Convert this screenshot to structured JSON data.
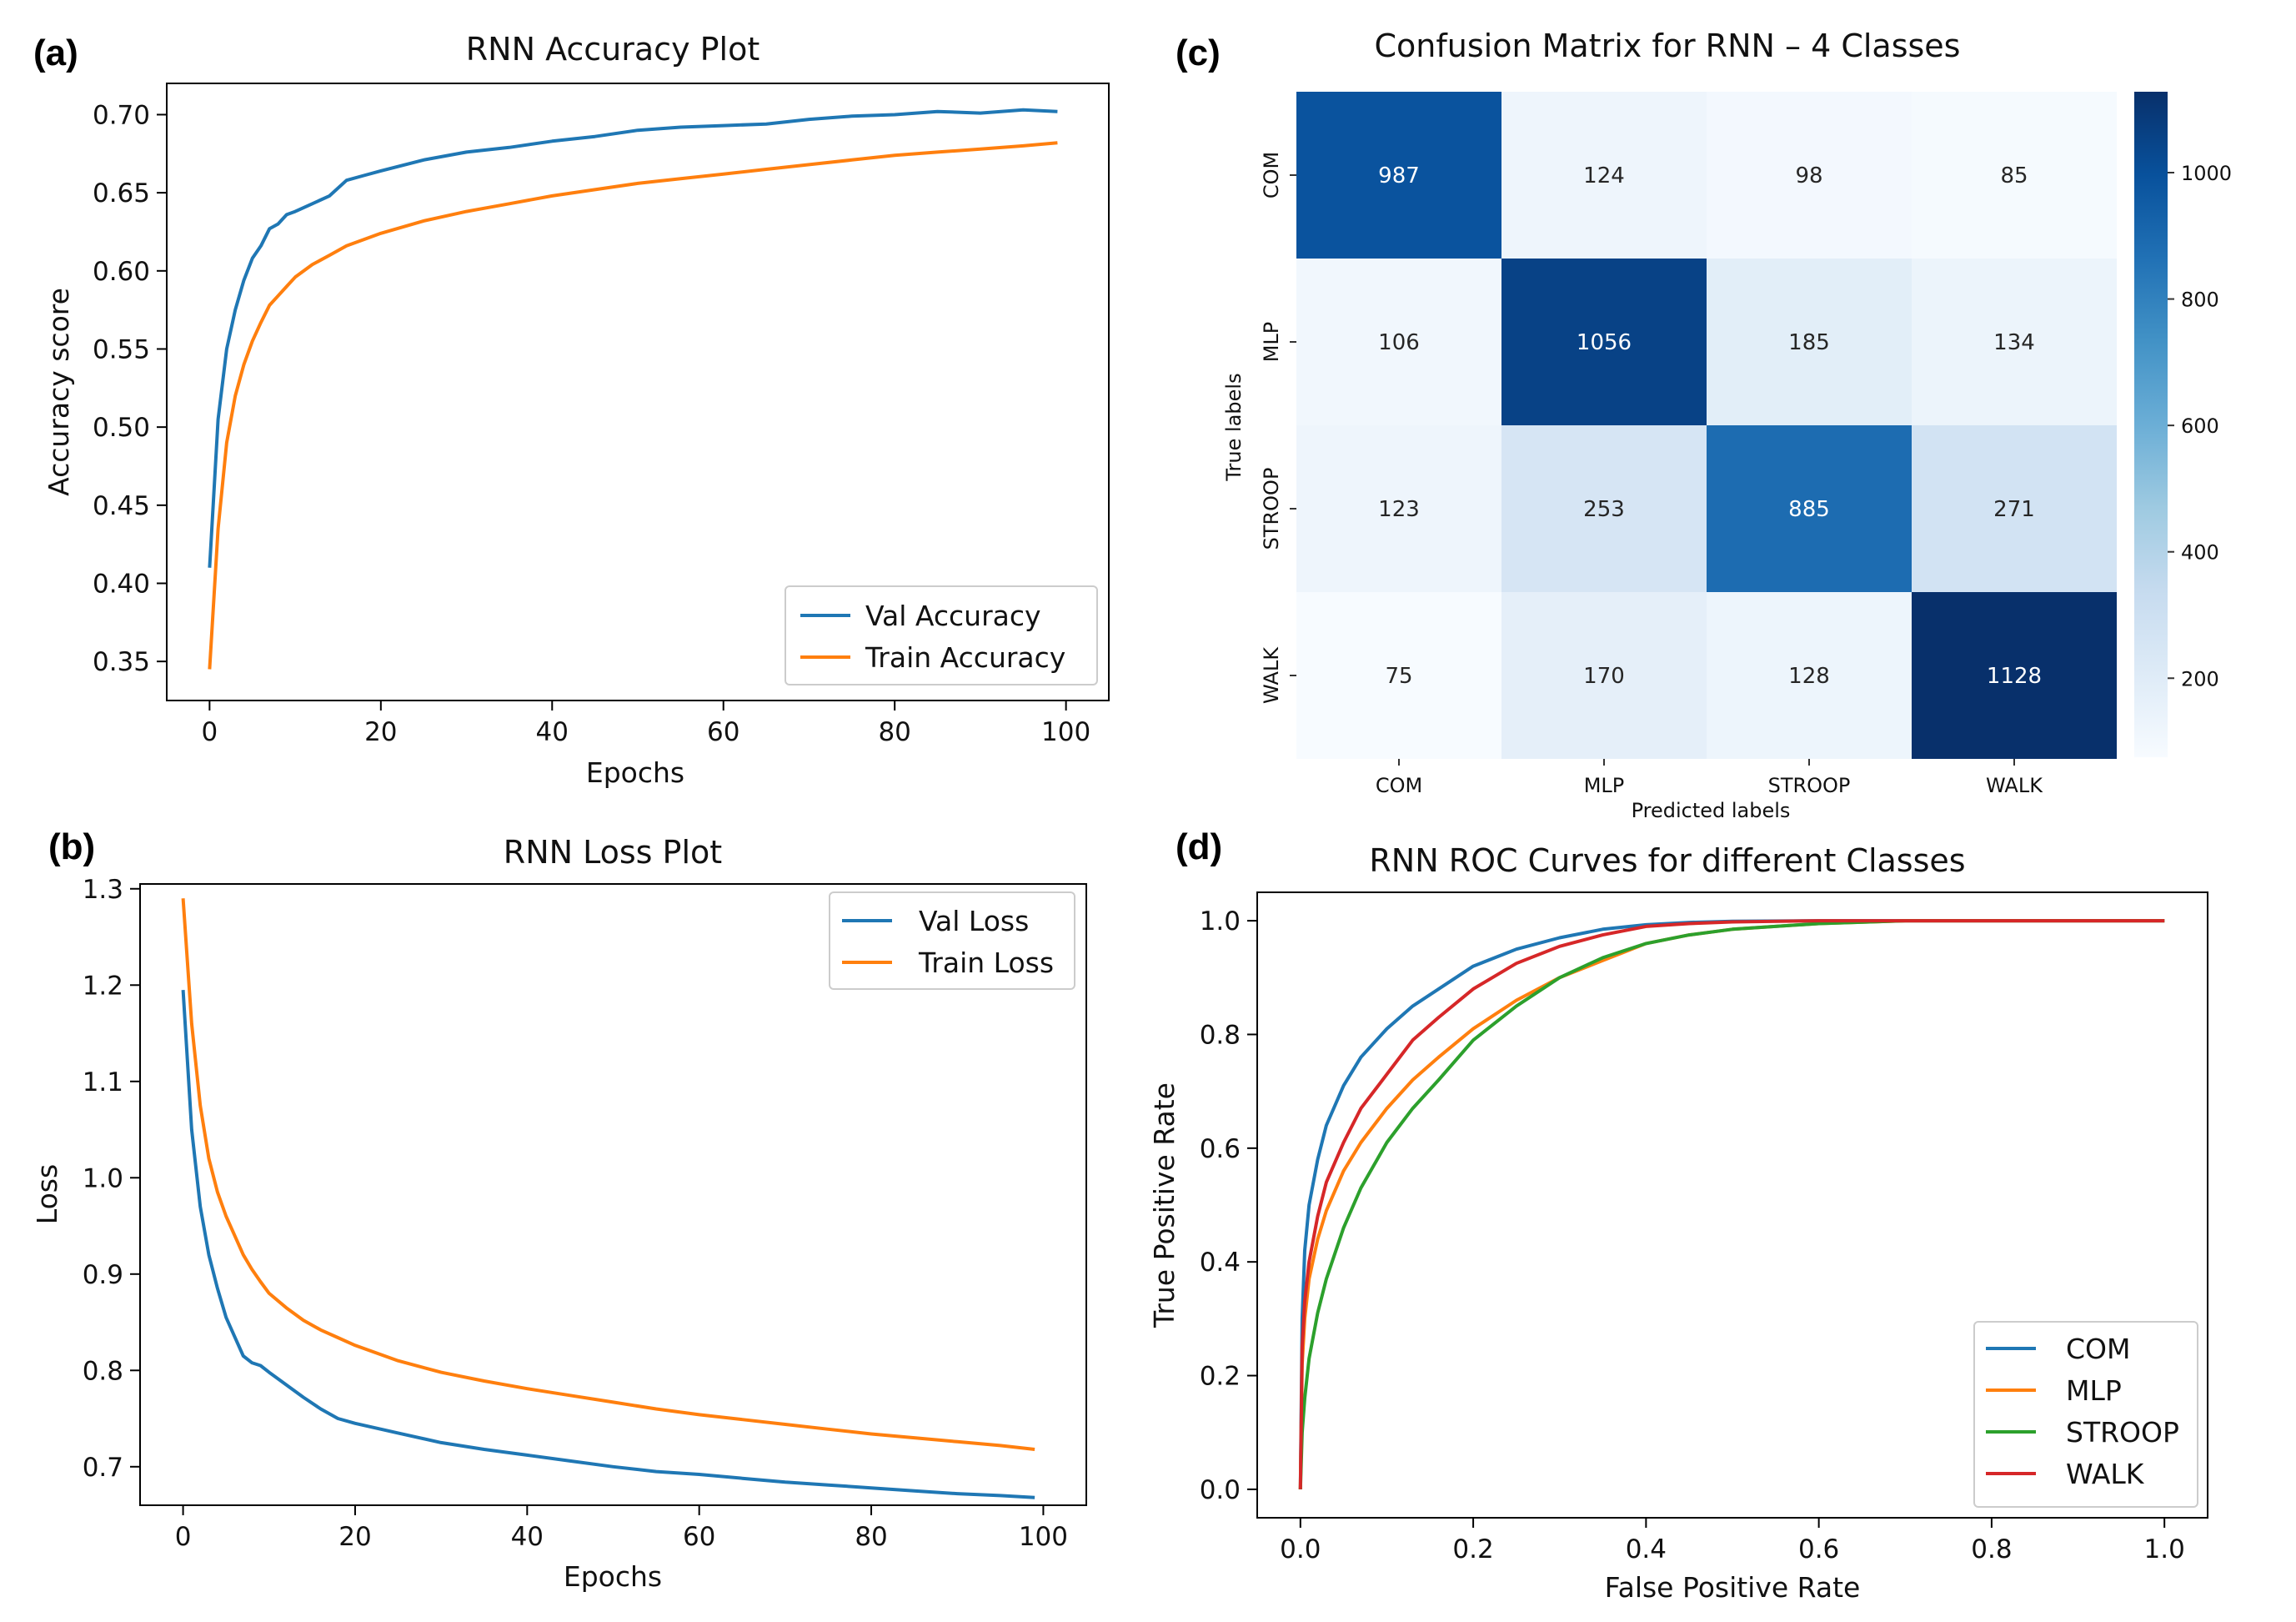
{
  "panels": {
    "a": "(a)",
    "b": "(b)",
    "c": "(c)",
    "d": "(d)"
  },
  "colors": {
    "blue": "#1f77b4",
    "orange": "#ff7f0e",
    "green": "#2ca02c",
    "red": "#d62728",
    "cm_low": "#f7fbff",
    "cm_high": "#08306b"
  },
  "chart_data": [
    {
      "id": "a",
      "type": "line",
      "title": "RNN Accuracy Plot",
      "xlabel": "Epochs",
      "ylabel": "Accuracy score",
      "xlim": [
        -5,
        105
      ],
      "ylim": [
        0.325,
        0.72
      ],
      "xticks": [
        0,
        20,
        40,
        60,
        80,
        100
      ],
      "xtick_labels": [
        "0",
        "20",
        "40",
        "60",
        "80",
        "100"
      ],
      "yticks": [
        0.35,
        0.4,
        0.45,
        0.5,
        0.55,
        0.6,
        0.65,
        0.7
      ],
      "ytick_labels": [
        "0.35",
        "0.40",
        "0.45",
        "0.50",
        "0.55",
        "0.60",
        "0.65",
        "0.70"
      ],
      "legend_position": "lower-right",
      "series": [
        {
          "name": "Val Accuracy",
          "color": "#1f77b4",
          "x": [
            0,
            1,
            2,
            3,
            4,
            5,
            6,
            7,
            8,
            9,
            10,
            12,
            14,
            16,
            18,
            20,
            25,
            30,
            35,
            40,
            45,
            50,
            55,
            60,
            65,
            70,
            75,
            80,
            85,
            90,
            95,
            99
          ],
          "y": [
            0.41,
            0.505,
            0.55,
            0.575,
            0.594,
            0.608,
            0.616,
            0.627,
            0.63,
            0.636,
            0.638,
            0.643,
            0.648,
            0.658,
            0.661,
            0.664,
            0.671,
            0.676,
            0.679,
            0.683,
            0.686,
            0.69,
            0.692,
            0.693,
            0.694,
            0.697,
            0.699,
            0.7,
            0.702,
            0.701,
            0.703,
            0.702
          ]
        },
        {
          "name": "Train Accuracy",
          "color": "#ff7f0e",
          "x": [
            0,
            1,
            2,
            3,
            4,
            5,
            6,
            7,
            8,
            9,
            10,
            12,
            14,
            16,
            18,
            20,
            25,
            30,
            35,
            40,
            45,
            50,
            55,
            60,
            65,
            70,
            75,
            80,
            85,
            90,
            95,
            99
          ],
          "y": [
            0.345,
            0.435,
            0.49,
            0.52,
            0.54,
            0.555,
            0.567,
            0.578,
            0.584,
            0.59,
            0.596,
            0.604,
            0.61,
            0.616,
            0.62,
            0.624,
            0.632,
            0.638,
            0.643,
            0.648,
            0.652,
            0.656,
            0.659,
            0.662,
            0.665,
            0.668,
            0.671,
            0.674,
            0.676,
            0.678,
            0.68,
            0.682
          ]
        }
      ]
    },
    {
      "id": "b",
      "type": "line",
      "title": "RNN Loss Plot",
      "xlabel": "Epochs",
      "ylabel": "Loss",
      "xlim": [
        -5,
        105
      ],
      "ylim": [
        0.66,
        1.305
      ],
      "xticks": [
        0,
        20,
        40,
        60,
        80,
        100
      ],
      "xtick_labels": [
        "0",
        "20",
        "40",
        "60",
        "80",
        "100"
      ],
      "yticks": [
        0.7,
        0.8,
        0.9,
        1.0,
        1.1,
        1.2,
        1.3
      ],
      "ytick_labels": [
        "0.7",
        "0.8",
        "0.9",
        "1.0",
        "1.1",
        "1.2",
        "1.3"
      ],
      "legend_position": "upper-right",
      "series": [
        {
          "name": "Val Loss",
          "color": "#1f77b4",
          "x": [
            0,
            1,
            2,
            3,
            4,
            5,
            6,
            7,
            8,
            9,
            10,
            12,
            14,
            16,
            18,
            20,
            25,
            30,
            35,
            40,
            45,
            50,
            55,
            60,
            65,
            70,
            75,
            80,
            85,
            90,
            95,
            99
          ],
          "y": [
            1.195,
            1.05,
            0.97,
            0.92,
            0.885,
            0.855,
            0.835,
            0.815,
            0.808,
            0.805,
            0.798,
            0.785,
            0.772,
            0.76,
            0.75,
            0.745,
            0.735,
            0.725,
            0.718,
            0.712,
            0.706,
            0.7,
            0.695,
            0.692,
            0.688,
            0.684,
            0.681,
            0.678,
            0.675,
            0.672,
            0.67,
            0.668
          ]
        },
        {
          "name": "Train Loss",
          "color": "#ff7f0e",
          "x": [
            0,
            1,
            2,
            3,
            4,
            5,
            6,
            7,
            8,
            9,
            10,
            12,
            14,
            16,
            18,
            20,
            25,
            30,
            35,
            40,
            45,
            50,
            55,
            60,
            65,
            70,
            75,
            80,
            85,
            90,
            95,
            99
          ],
          "y": [
            1.29,
            1.16,
            1.075,
            1.02,
            0.985,
            0.96,
            0.94,
            0.92,
            0.905,
            0.892,
            0.88,
            0.865,
            0.852,
            0.842,
            0.834,
            0.826,
            0.81,
            0.798,
            0.789,
            0.781,
            0.774,
            0.767,
            0.76,
            0.754,
            0.749,
            0.744,
            0.739,
            0.734,
            0.73,
            0.726,
            0.722,
            0.718
          ]
        }
      ]
    },
    {
      "id": "c",
      "type": "heatmap",
      "title": "Confusion Matrix for RNN – 4 Classes",
      "xlabel": "Predicted labels",
      "ylabel": "True labels",
      "xtick_labels": [
        "COM",
        "MLP",
        "STROOP",
        "WALK"
      ],
      "ytick_labels": [
        "COM",
        "MLP",
        "STROOP",
        "WALK"
      ],
      "matrix": [
        [
          987,
          124,
          98,
          85
        ],
        [
          106,
          1056,
          185,
          134
        ],
        [
          123,
          253,
          885,
          271
        ],
        [
          75,
          170,
          128,
          1128
        ]
      ],
      "value_labels": [
        [
          "987",
          "124",
          "98",
          "85"
        ],
        [
          "106",
          "1056",
          "185",
          "134"
        ],
        [
          "123",
          "253",
          "885",
          "271"
        ],
        [
          "75",
          "170",
          "128",
          "1128"
        ]
      ],
      "colorbar": {
        "range": [
          75,
          1128
        ],
        "ticks": [
          200,
          400,
          600,
          800,
          1000
        ],
        "tick_labels": [
          "200",
          "400",
          "600",
          "800",
          "1000"
        ]
      }
    },
    {
      "id": "d",
      "type": "line",
      "title": "RNN ROC Curves for different Classes",
      "xlabel": "False Positive Rate",
      "ylabel": "True Positive Rate",
      "xlim": [
        -0.05,
        1.05
      ],
      "ylim": [
        -0.05,
        1.05
      ],
      "xticks": [
        0,
        0.2,
        0.4,
        0.6,
        0.8,
        1.0
      ],
      "xtick_labels": [
        "0.0",
        "0.2",
        "0.4",
        "0.6",
        "0.8",
        "1.0"
      ],
      "yticks": [
        0,
        0.2,
        0.4,
        0.6,
        0.8,
        1.0
      ],
      "ytick_labels": [
        "0.0",
        "0.2",
        "0.4",
        "0.6",
        "0.8",
        "1.0"
      ],
      "legend_position": "lower-right",
      "series": [
        {
          "name": "COM",
          "color": "#1f77b4",
          "x": [
            0,
            0.002,
            0.005,
            0.01,
            0.02,
            0.03,
            0.05,
            0.07,
            0.1,
            0.13,
            0.16,
            0.2,
            0.25,
            0.3,
            0.35,
            0.4,
            0.45,
            0.5,
            0.6,
            0.7,
            0.8,
            0.9,
            1.0
          ],
          "y": [
            0,
            0.3,
            0.42,
            0.5,
            0.58,
            0.64,
            0.71,
            0.76,
            0.81,
            0.85,
            0.88,
            0.92,
            0.95,
            0.97,
            0.985,
            0.993,
            0.997,
            0.999,
            1.0,
            1.0,
            1.0,
            1.0,
            1.0
          ]
        },
        {
          "name": "MLP",
          "color": "#ff7f0e",
          "x": [
            0,
            0.002,
            0.005,
            0.01,
            0.02,
            0.03,
            0.05,
            0.07,
            0.1,
            0.13,
            0.16,
            0.2,
            0.25,
            0.3,
            0.35,
            0.4,
            0.45,
            0.5,
            0.6,
            0.7,
            0.8,
            0.9,
            1.0
          ],
          "y": [
            0,
            0.22,
            0.3,
            0.37,
            0.44,
            0.49,
            0.56,
            0.61,
            0.67,
            0.72,
            0.76,
            0.81,
            0.86,
            0.9,
            0.93,
            0.96,
            0.975,
            0.985,
            0.995,
            1.0,
            1.0,
            1.0,
            1.0
          ]
        },
        {
          "name": "STROOP",
          "color": "#2ca02c",
          "x": [
            0,
            0.002,
            0.005,
            0.01,
            0.02,
            0.03,
            0.05,
            0.07,
            0.1,
            0.13,
            0.16,
            0.2,
            0.25,
            0.3,
            0.35,
            0.4,
            0.45,
            0.5,
            0.6,
            0.7,
            0.8,
            0.9,
            1.0
          ],
          "y": [
            0,
            0.1,
            0.16,
            0.23,
            0.31,
            0.37,
            0.46,
            0.53,
            0.61,
            0.67,
            0.72,
            0.79,
            0.85,
            0.9,
            0.935,
            0.96,
            0.975,
            0.985,
            0.995,
            1.0,
            1.0,
            1.0,
            1.0
          ]
        },
        {
          "name": "WALK",
          "color": "#d62728",
          "x": [
            0,
            0.002,
            0.005,
            0.01,
            0.02,
            0.03,
            0.05,
            0.07,
            0.1,
            0.13,
            0.16,
            0.2,
            0.25,
            0.3,
            0.35,
            0.4,
            0.45,
            0.5,
            0.6,
            0.7,
            0.8,
            0.9,
            1.0
          ],
          "y": [
            0,
            0.25,
            0.33,
            0.4,
            0.48,
            0.54,
            0.61,
            0.67,
            0.73,
            0.79,
            0.83,
            0.88,
            0.925,
            0.955,
            0.975,
            0.99,
            0.995,
            0.998,
            1.0,
            1.0,
            1.0,
            1.0,
            1.0
          ]
        }
      ]
    }
  ]
}
